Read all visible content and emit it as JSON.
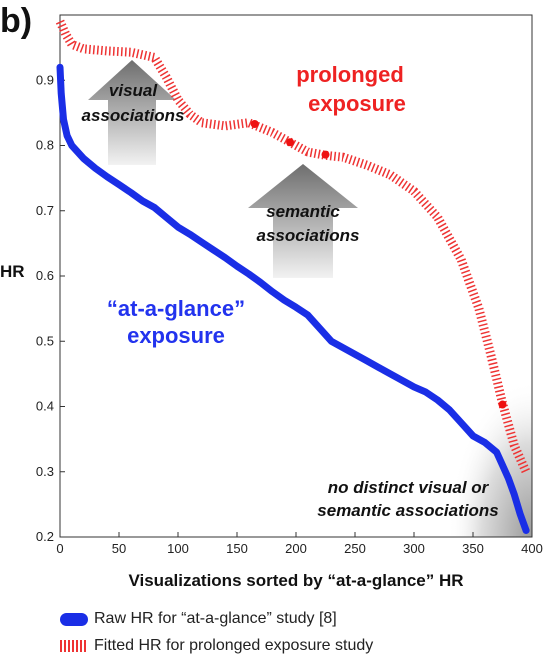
{
  "panel_label": "b)",
  "chart_data": {
    "type": "line",
    "xlabel": "Visualizations sorted by “at-a-glance” HR",
    "ylabel": "HR",
    "xlim": [
      0,
      400
    ],
    "ylim": [
      0.2,
      1.0
    ],
    "xticks": [
      0,
      50,
      100,
      150,
      200,
      250,
      300,
      350,
      400
    ],
    "yticks": [
      0.2,
      0.3,
      0.4,
      0.5,
      0.6,
      0.7,
      0.8,
      0.9
    ],
    "grid": false,
    "legend_position": "bottom",
    "series": [
      {
        "name": "Raw HR for “at-a-glance” study [8]",
        "style": "thick-solid",
        "color": "#1a2ee6",
        "x": [
          0,
          1,
          3,
          6,
          10,
          15,
          20,
          30,
          40,
          50,
          60,
          70,
          80,
          90,
          100,
          110,
          120,
          130,
          140,
          150,
          160,
          170,
          180,
          190,
          200,
          210,
          220,
          230,
          240,
          250,
          260,
          270,
          280,
          290,
          300,
          310,
          320,
          330,
          340,
          350,
          360,
          370,
          375,
          380,
          385,
          390,
          395
        ],
        "y": [
          0.92,
          0.88,
          0.84,
          0.815,
          0.8,
          0.79,
          0.78,
          0.765,
          0.752,
          0.74,
          0.728,
          0.715,
          0.705,
          0.69,
          0.675,
          0.664,
          0.652,
          0.64,
          0.628,
          0.615,
          0.603,
          0.59,
          0.576,
          0.563,
          0.552,
          0.54,
          0.52,
          0.5,
          0.49,
          0.48,
          0.47,
          0.46,
          0.45,
          0.44,
          0.43,
          0.422,
          0.41,
          0.395,
          0.375,
          0.355,
          0.345,
          0.33,
          0.31,
          0.29,
          0.265,
          0.235,
          0.21
        ]
      },
      {
        "name": "Fitted HR for prolonged exposure study",
        "style": "hatched",
        "color": "#ee3333",
        "x": [
          0,
          5,
          10,
          20,
          40,
          60,
          80,
          90,
          100,
          110,
          120,
          140,
          160,
          180,
          195,
          210,
          225,
          240,
          260,
          280,
          300,
          320,
          340,
          355,
          365,
          375,
          385,
          395
        ],
        "y": [
          0.99,
          0.97,
          0.955,
          0.948,
          0.945,
          0.943,
          0.935,
          0.905,
          0.87,
          0.848,
          0.835,
          0.83,
          0.835,
          0.82,
          0.805,
          0.79,
          0.785,
          0.782,
          0.77,
          0.755,
          0.73,
          0.69,
          0.625,
          0.55,
          0.48,
          0.405,
          0.34,
          0.3
        ]
      }
    ],
    "highlight_points": [
      {
        "x": 165,
        "y": 0.833
      },
      {
        "x": 195,
        "y": 0.805
      },
      {
        "x": 225,
        "y": 0.786
      },
      {
        "x": 375,
        "y": 0.403
      }
    ],
    "annotations": {
      "prolonged": [
        "prolonged",
        "exposure"
      ],
      "glance": [
        "“at-a-glance”",
        "exposure"
      ],
      "visual": [
        "visual",
        "associations"
      ],
      "semantic": [
        "semantic",
        "associations"
      ],
      "none": [
        "no distinct visual or",
        "semantic associations"
      ]
    }
  }
}
